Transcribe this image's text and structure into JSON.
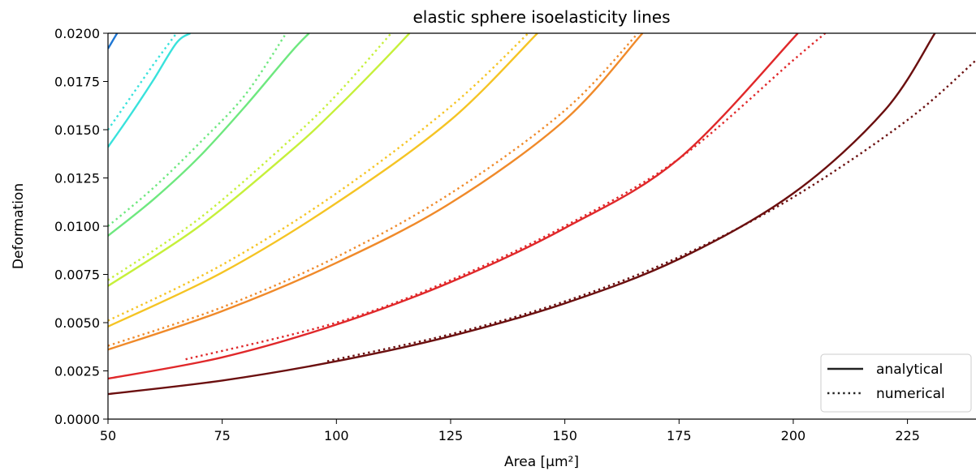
{
  "chart_data": {
    "type": "line",
    "title": "elastic sphere isoelasticity lines",
    "xlabel": "Area [µm²]",
    "ylabel": "Deformation",
    "xlim": [
      50,
      240
    ],
    "ylim": [
      0.0,
      0.02
    ],
    "xticks": [
      "50",
      "75",
      "100",
      "125",
      "150",
      "175",
      "200",
      "225"
    ],
    "xtick_values": [
      50,
      75,
      100,
      125,
      150,
      175,
      200,
      225
    ],
    "yticks": [
      "0.0000",
      "0.0025",
      "0.0050",
      "0.0075",
      "0.0100",
      "0.0125",
      "0.0150",
      "0.0175",
      "0.0200"
    ],
    "ytick_values": [
      0.0,
      0.0025,
      0.005,
      0.0075,
      0.01,
      0.0125,
      0.015,
      0.0175,
      0.02
    ],
    "grid": false,
    "legend": {
      "placement": "lower-right",
      "entries": [
        {
          "label": "analytical",
          "style": "solid",
          "color": "#222222"
        },
        {
          "label": "numerical",
          "style": "dotted",
          "color": "#222222"
        }
      ]
    },
    "series": [
      {
        "color": "#1f77d4",
        "analytical": [
          [
            50,
            0.0192
          ],
          [
            51,
            0.0196
          ],
          [
            52,
            0.02
          ]
        ],
        "numerical": []
      },
      {
        "color": "#39e2dc",
        "analytical": [
          [
            50,
            0.0141
          ],
          [
            55,
            0.0158
          ],
          [
            60,
            0.0176
          ],
          [
            65,
            0.0195
          ],
          [
            68,
            0.02
          ]
        ],
        "numerical": [
          [
            50,
            0.015
          ],
          [
            55,
            0.0167
          ],
          [
            60,
            0.0184
          ],
          [
            65,
            0.02
          ]
        ]
      },
      {
        "color": "#6ee87f",
        "analytical": [
          [
            50,
            0.0095
          ],
          [
            60,
            0.0114
          ],
          [
            70,
            0.0136
          ],
          [
            80,
            0.0162
          ],
          [
            90,
            0.019
          ],
          [
            94,
            0.02
          ]
        ],
        "numerical": [
          [
            50,
            0.01
          ],
          [
            60,
            0.012
          ],
          [
            70,
            0.0143
          ],
          [
            80,
            0.0168
          ],
          [
            89,
            0.02
          ]
        ]
      },
      {
        "color": "#c6f03a",
        "analytical": [
          [
            50,
            0.0069
          ],
          [
            70,
            0.01
          ],
          [
            90,
            0.0139
          ],
          [
            100,
            0.0161
          ],
          [
            110,
            0.0185
          ],
          [
            116,
            0.02
          ]
        ],
        "numerical": [
          [
            50,
            0.0072
          ],
          [
            70,
            0.0104
          ],
          [
            90,
            0.0145
          ],
          [
            100,
            0.0168
          ],
          [
            112,
            0.02
          ]
        ]
      },
      {
        "color": "#f5c424",
        "analytical": [
          [
            50,
            0.0048
          ],
          [
            75,
            0.0076
          ],
          [
            100,
            0.0112
          ],
          [
            125,
            0.0155
          ],
          [
            144,
            0.02
          ]
        ],
        "numerical": [
          [
            50,
            0.0051
          ],
          [
            75,
            0.008
          ],
          [
            100,
            0.0117
          ],
          [
            125,
            0.0162
          ],
          [
            142,
            0.02
          ]
        ]
      },
      {
        "color": "#f08a2a",
        "analytical": [
          [
            50,
            0.0036
          ],
          [
            75,
            0.0056
          ],
          [
            100,
            0.0081
          ],
          [
            125,
            0.0112
          ],
          [
            150,
            0.0155
          ],
          [
            167,
            0.02
          ]
        ],
        "numerical": [
          [
            50,
            0.0038
          ],
          [
            75,
            0.0058
          ],
          [
            100,
            0.0084
          ],
          [
            125,
            0.0117
          ],
          [
            150,
            0.016
          ],
          [
            166,
            0.02
          ]
        ]
      },
      {
        "color": "#e0282a",
        "analytical": [
          [
            50,
            0.0021
          ],
          [
            75,
            0.0032
          ],
          [
            100,
            0.0049
          ],
          [
            125,
            0.0071
          ],
          [
            150,
            0.0099
          ],
          [
            175,
            0.0135
          ],
          [
            201,
            0.02
          ]
        ],
        "numerical": [
          [
            67,
            0.0031
          ],
          [
            100,
            0.005
          ],
          [
            125,
            0.0072
          ],
          [
            150,
            0.01
          ],
          [
            175,
            0.0135
          ],
          [
            200,
            0.0186
          ],
          [
            207,
            0.02
          ]
        ]
      },
      {
        "color": "#6b0f0f",
        "analytical": [
          [
            50,
            0.0013
          ],
          [
            75,
            0.002
          ],
          [
            100,
            0.003
          ],
          [
            125,
            0.0043
          ],
          [
            150,
            0.006
          ],
          [
            175,
            0.0083
          ],
          [
            200,
            0.0117
          ],
          [
            220,
            0.016
          ],
          [
            231,
            0.02
          ]
        ],
        "numerical": [
          [
            98,
            0.003
          ],
          [
            125,
            0.0044
          ],
          [
            150,
            0.0061
          ],
          [
            175,
            0.0084
          ],
          [
            200,
            0.0115
          ],
          [
            225,
            0.0155
          ],
          [
            240,
            0.0186
          ]
        ]
      }
    ]
  }
}
